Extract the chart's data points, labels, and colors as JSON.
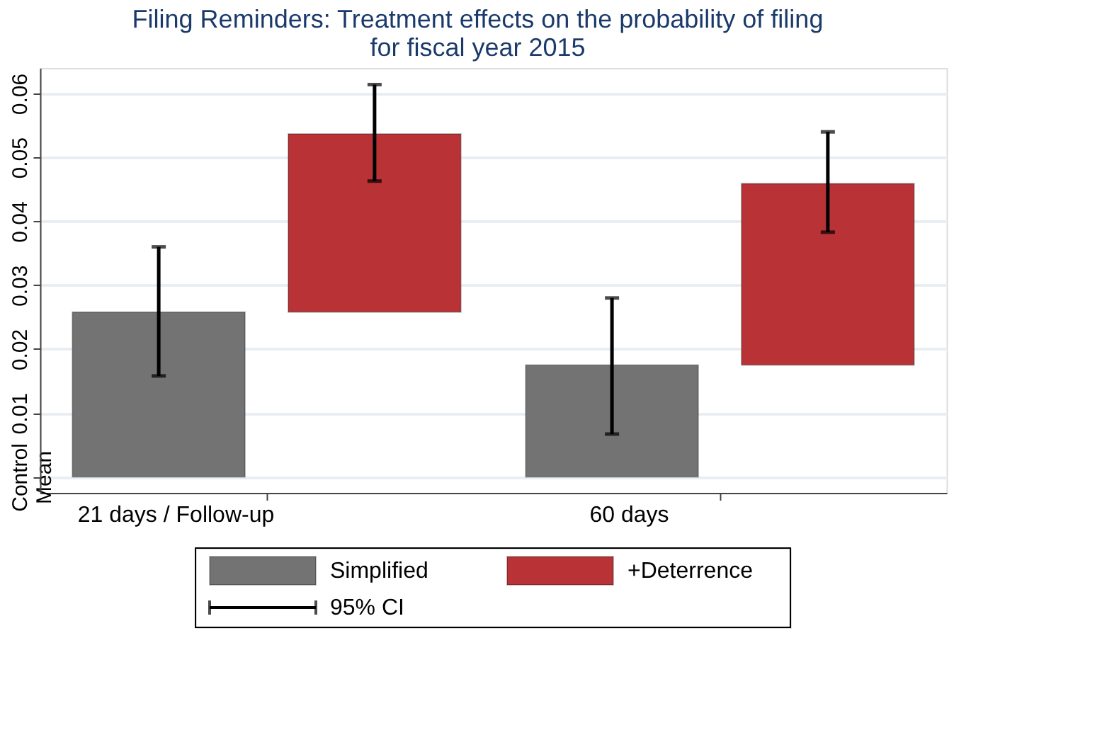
{
  "chart_data": {
    "type": "bar",
    "title": "Filing Reminders: Treatment effects on the probability of filing\nfor fiscal year 2015",
    "categories": [
      "21 days / Follow-up",
      "60 days"
    ],
    "series": [
      {
        "name": "Simplified",
        "color": "#737373",
        "values": [
          0.0258,
          0.0175
        ],
        "errors": [
          [
            0.0158,
            0.036
          ],
          [
            0.0067,
            0.028
          ]
        ]
      },
      {
        "name": "+Deterrence",
        "color": "#b83236",
        "values": [
          0.0279,
          0.0284
        ],
        "base": [
          0.0258,
          0.0175
        ],
        "errors": [
          [
            0.0463,
            0.0614
          ],
          [
            0.0383,
            0.054
          ]
        ]
      }
    ],
    "ylim": [
      -0.0025,
      0.064
    ],
    "yticks": [
      {
        "value": 0,
        "label": "Control Mean"
      },
      0.01,
      0.02,
      0.03,
      0.04,
      0.05,
      0.06
    ],
    "grid": "y",
    "legend": "bottom",
    "annotations": [
      "95% CI"
    ]
  }
}
